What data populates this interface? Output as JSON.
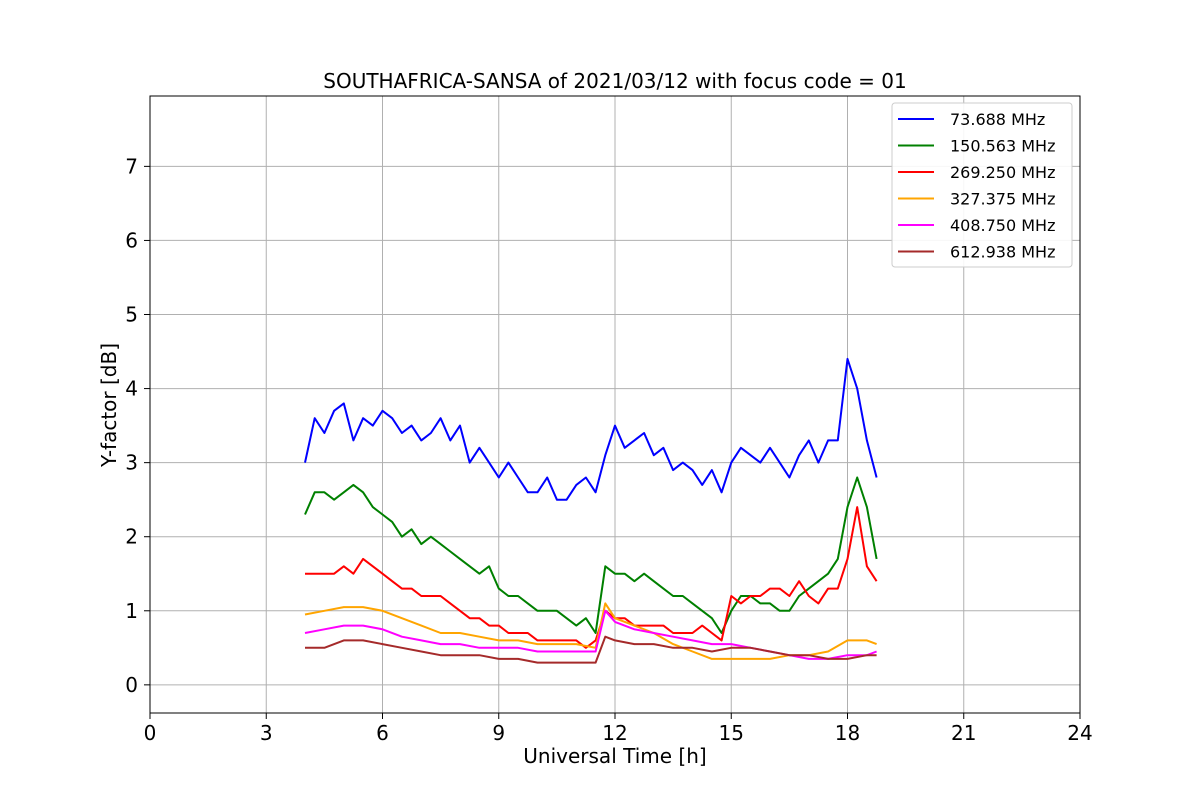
{
  "chart_data": {
    "type": "line",
    "title": "SOUTHAFRICA-SANSA of 2021/03/12 with focus code = 01",
    "xlabel": "Universal Time [h]",
    "ylabel": "Y-factor [dB]",
    "xlim": [
      0,
      24
    ],
    "ylim": [
      -0.38,
      7.95
    ],
    "x_ticks": [
      "0",
      "3",
      "6",
      "9",
      "12",
      "15",
      "18",
      "21",
      "24"
    ],
    "y_ticks": [
      "0",
      "1",
      "2",
      "3",
      "4",
      "5",
      "6",
      "7"
    ],
    "grid": true,
    "legend_position": "top-right",
    "series": [
      {
        "name": "73.688 MHz",
        "color": "#0000ff",
        "x": [
          4.0,
          4.25,
          4.5,
          4.75,
          5.0,
          5.25,
          5.5,
          5.75,
          6.0,
          6.25,
          6.5,
          6.75,
          7.0,
          7.25,
          7.5,
          7.75,
          8.0,
          8.25,
          8.5,
          8.75,
          9.0,
          9.25,
          9.5,
          9.75,
          10.0,
          10.25,
          10.5,
          10.75,
          11.0,
          11.25,
          11.5,
          11.75,
          12.0,
          12.25,
          12.5,
          12.75,
          13.0,
          13.25,
          13.5,
          13.75,
          14.0,
          14.25,
          14.5,
          14.75,
          15.0,
          15.25,
          15.5,
          15.75,
          16.0,
          16.25,
          16.5,
          16.75,
          17.0,
          17.25,
          17.5,
          17.75,
          18.0,
          18.25,
          18.5,
          18.75
        ],
        "y": [
          3.0,
          3.6,
          3.4,
          3.7,
          3.8,
          3.3,
          3.6,
          3.5,
          3.7,
          3.6,
          3.4,
          3.5,
          3.3,
          3.4,
          3.6,
          3.3,
          3.5,
          3.0,
          3.2,
          3.0,
          2.8,
          3.0,
          2.8,
          2.6,
          2.6,
          2.8,
          2.5,
          2.5,
          2.7,
          2.8,
          2.6,
          3.1,
          3.5,
          3.2,
          3.3,
          3.4,
          3.1,
          3.2,
          2.9,
          3.0,
          2.9,
          2.7,
          2.9,
          2.6,
          3.0,
          3.2,
          3.1,
          3.0,
          3.2,
          3.0,
          2.8,
          3.1,
          3.3,
          3.0,
          3.3,
          3.3,
          4.4,
          4.0,
          3.3,
          2.8
        ]
      },
      {
        "name": "150.563 MHz",
        "color": "#008000",
        "x": [
          4.0,
          4.25,
          4.5,
          4.75,
          5.0,
          5.25,
          5.5,
          5.75,
          6.0,
          6.25,
          6.5,
          6.75,
          7.0,
          7.25,
          7.5,
          7.75,
          8.0,
          8.25,
          8.5,
          8.75,
          9.0,
          9.25,
          9.5,
          9.75,
          10.0,
          10.25,
          10.5,
          10.75,
          11.0,
          11.25,
          11.5,
          11.75,
          12.0,
          12.25,
          12.5,
          12.75,
          13.0,
          13.25,
          13.5,
          13.75,
          14.0,
          14.25,
          14.5,
          14.75,
          15.0,
          15.25,
          15.5,
          15.75,
          16.0,
          16.25,
          16.5,
          16.75,
          17.0,
          17.25,
          17.5,
          17.75,
          18.0,
          18.25,
          18.5,
          18.75
        ],
        "y": [
          2.3,
          2.6,
          2.6,
          2.5,
          2.6,
          2.7,
          2.6,
          2.4,
          2.3,
          2.2,
          2.0,
          2.1,
          1.9,
          2.0,
          1.9,
          1.8,
          1.7,
          1.6,
          1.5,
          1.6,
          1.3,
          1.2,
          1.2,
          1.1,
          1.0,
          1.0,
          1.0,
          0.9,
          0.8,
          0.9,
          0.7,
          1.6,
          1.5,
          1.5,
          1.4,
          1.5,
          1.4,
          1.3,
          1.2,
          1.2,
          1.1,
          1.0,
          0.9,
          0.7,
          1.0,
          1.2,
          1.2,
          1.1,
          1.1,
          1.0,
          1.0,
          1.2,
          1.3,
          1.4,
          1.5,
          1.7,
          2.4,
          2.8,
          2.4,
          1.7
        ]
      },
      {
        "name": "269.250 MHz",
        "color": "#ff0000",
        "x": [
          4.0,
          4.25,
          4.5,
          4.75,
          5.0,
          5.25,
          5.5,
          5.75,
          6.0,
          6.25,
          6.5,
          6.75,
          7.0,
          7.25,
          7.5,
          7.75,
          8.0,
          8.25,
          8.5,
          8.75,
          9.0,
          9.25,
          9.5,
          9.75,
          10.0,
          10.25,
          10.5,
          10.75,
          11.0,
          11.25,
          11.5,
          11.75,
          12.0,
          12.25,
          12.5,
          12.75,
          13.0,
          13.25,
          13.5,
          13.75,
          14.0,
          14.25,
          14.5,
          14.75,
          15.0,
          15.25,
          15.5,
          15.75,
          16.0,
          16.25,
          16.5,
          16.75,
          17.0,
          17.25,
          17.5,
          17.75,
          18.0,
          18.25,
          18.5,
          18.75
        ],
        "y": [
          1.5,
          1.5,
          1.5,
          1.5,
          1.6,
          1.5,
          1.7,
          1.6,
          1.5,
          1.4,
          1.3,
          1.3,
          1.2,
          1.2,
          1.2,
          1.1,
          1.0,
          0.9,
          0.9,
          0.8,
          0.8,
          0.7,
          0.7,
          0.7,
          0.6,
          0.6,
          0.6,
          0.6,
          0.6,
          0.5,
          0.6,
          1.0,
          0.9,
          0.9,
          0.8,
          0.8,
          0.8,
          0.8,
          0.7,
          0.7,
          0.7,
          0.8,
          0.7,
          0.6,
          1.2,
          1.1,
          1.2,
          1.2,
          1.3,
          1.3,
          1.2,
          1.4,
          1.2,
          1.1,
          1.3,
          1.3,
          1.7,
          2.4,
          1.6,
          1.4
        ]
      },
      {
        "name": "327.375 MHz",
        "color": "#ffa500",
        "x": [
          4.0,
          4.5,
          5.0,
          5.5,
          6.0,
          6.5,
          7.0,
          7.5,
          8.0,
          8.5,
          9.0,
          9.5,
          10.0,
          10.5,
          11.0,
          11.5,
          11.75,
          12.0,
          12.5,
          13.0,
          13.5,
          14.0,
          14.5,
          15.0,
          15.5,
          16.0,
          16.5,
          17.0,
          17.5,
          18.0,
          18.5,
          18.75
        ],
        "y": [
          0.95,
          1.0,
          1.05,
          1.05,
          1.0,
          0.9,
          0.8,
          0.7,
          0.7,
          0.65,
          0.6,
          0.6,
          0.55,
          0.55,
          0.55,
          0.5,
          1.1,
          0.9,
          0.8,
          0.7,
          0.55,
          0.45,
          0.35,
          0.35,
          0.35,
          0.35,
          0.4,
          0.4,
          0.45,
          0.6,
          0.6,
          0.55
        ]
      },
      {
        "name": "408.750 MHz",
        "color": "#ff00ff",
        "x": [
          4.0,
          4.5,
          5.0,
          5.5,
          6.0,
          6.5,
          7.0,
          7.5,
          8.0,
          8.5,
          9.0,
          9.5,
          10.0,
          10.5,
          11.0,
          11.5,
          11.75,
          12.0,
          12.5,
          13.0,
          13.5,
          14.0,
          14.5,
          15.0,
          15.5,
          16.0,
          16.5,
          17.0,
          17.5,
          18.0,
          18.5,
          18.75
        ],
        "y": [
          0.7,
          0.75,
          0.8,
          0.8,
          0.75,
          0.65,
          0.6,
          0.55,
          0.55,
          0.5,
          0.5,
          0.5,
          0.45,
          0.45,
          0.45,
          0.45,
          1.0,
          0.85,
          0.75,
          0.7,
          0.65,
          0.6,
          0.55,
          0.55,
          0.5,
          0.45,
          0.4,
          0.35,
          0.35,
          0.4,
          0.4,
          0.45
        ]
      },
      {
        "name": "612.938 MHz",
        "color": "#a52a2a",
        "x": [
          4.0,
          4.5,
          5.0,
          5.5,
          6.0,
          6.5,
          7.0,
          7.5,
          8.0,
          8.5,
          9.0,
          9.5,
          10.0,
          10.5,
          11.0,
          11.5,
          11.75,
          12.0,
          12.5,
          13.0,
          13.5,
          14.0,
          14.5,
          15.0,
          15.5,
          16.0,
          16.5,
          17.0,
          17.5,
          18.0,
          18.5,
          18.75
        ],
        "y": [
          0.5,
          0.5,
          0.6,
          0.6,
          0.55,
          0.5,
          0.45,
          0.4,
          0.4,
          0.4,
          0.35,
          0.35,
          0.3,
          0.3,
          0.3,
          0.3,
          0.65,
          0.6,
          0.55,
          0.55,
          0.5,
          0.5,
          0.45,
          0.5,
          0.5,
          0.45,
          0.4,
          0.4,
          0.35,
          0.35,
          0.4,
          0.4
        ]
      }
    ]
  }
}
